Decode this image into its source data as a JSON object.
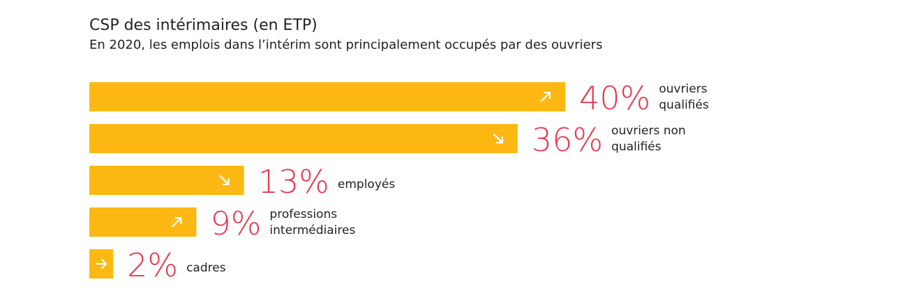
{
  "chart_data": {
    "type": "bar",
    "orientation": "horizontal",
    "title": "CSP des intérimaires (en ETP)",
    "subtitle": "En 2020, les emplois dans l’intérim sont principalement occupés par des ouvriers",
    "categories": [
      [
        "ouvriers",
        "qualifiés"
      ],
      [
        "ouvriers non",
        "qualifiés"
      ],
      [
        "employés"
      ],
      [
        "professions",
        "intermédiaires"
      ],
      [
        "cadres"
      ]
    ],
    "values": [
      40,
      36,
      13,
      9,
      2
    ],
    "value_labels": [
      "40%",
      "36%",
      "13%",
      "9%",
      "2%"
    ],
    "trend_icons": [
      "arrow-up-right-icon",
      "arrow-down-right-icon",
      "arrow-down-right-icon",
      "arrow-up-right-icon",
      "arrow-right-icon"
    ],
    "unit": "%",
    "colors": {
      "bar": "#FDB813",
      "value_label": "#E8384F",
      "text": "#222222",
      "icon": "#ffffff"
    }
  }
}
